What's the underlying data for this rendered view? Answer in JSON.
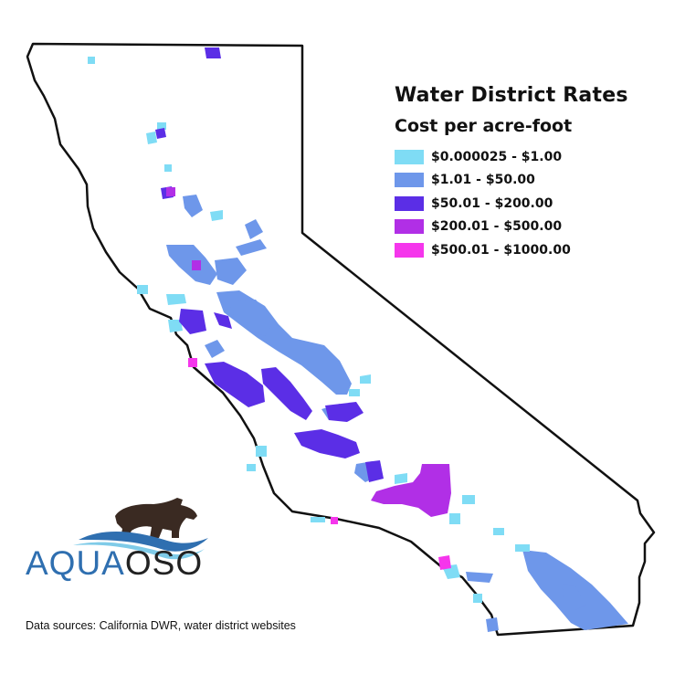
{
  "legend": {
    "title": "Water District Rates",
    "subtitle": "Cost per acre-foot",
    "items": [
      {
        "label": "$0.000025 - $1.00",
        "color": "#7fdcf5"
      },
      {
        "label": "$1.01 - $50.00",
        "color": "#6e97ea"
      },
      {
        "label": "$50.01 - $200.00",
        "color": "#5b2ee6"
      },
      {
        "label": "$200.01 - $500.00",
        "color": "#b12fe6"
      },
      {
        "label": "$500.01 - $1000.00",
        "color": "#f536ec"
      }
    ]
  },
  "logo": {
    "part1": "AQUA",
    "part2": "OSO",
    "icon": "bear-over-waves-icon",
    "colors": {
      "aqua": "#2f6fb0",
      "oso": "#222222"
    }
  },
  "sources": "Data sources: California DWR, water district websites",
  "map": {
    "region": "California",
    "outline_color": "#111111"
  }
}
